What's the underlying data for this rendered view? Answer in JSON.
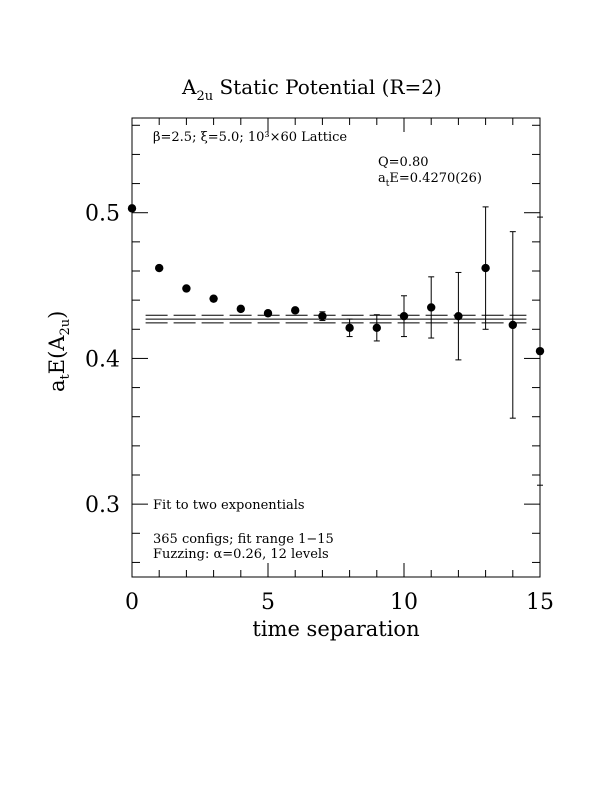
{
  "chart_data": {
    "type": "scatter",
    "title": "A₂ᵤ Static Potential (R=2)",
    "title_main": "A",
    "title_sub": "2u",
    "title_rest": " Static Potential (R=2)",
    "xlabel": "time separation",
    "ylabel_main": "a",
    "ylabel_sub1": "t",
    "ylabel_mid": "E(A",
    "ylabel_sub2": "2u",
    "ylabel_end": ")",
    "xlim": [
      0,
      15
    ],
    "ylim": [
      0.25,
      0.565
    ],
    "xticks": [
      0,
      5,
      10,
      15
    ],
    "xtick_labels": [
      "0",
      "5",
      "10",
      "15"
    ],
    "yticks": [
      0.3,
      0.4,
      0.5
    ],
    "ytick_labels": [
      "0.3",
      "0.4",
      "0.5"
    ],
    "grid": false,
    "annotations": {
      "lattice": "β=2.5; ξ=5.0; 10³×60 Lattice",
      "q": "Q=0.80",
      "energy_main": "a",
      "energy_sub": "t",
      "energy_rest": "E=0.4270(26)",
      "fit_note": "Fit to two exponentials",
      "configs": "365 configs; fit range 1−15",
      "fuzzing": "Fuzzing: α=0.26, 12 levels"
    },
    "fit": {
      "value": 0.427,
      "error": 0.0026,
      "x_range": [
        0.5,
        14.5
      ]
    },
    "series": [
      {
        "points": [
          {
            "x": 0,
            "y": 0.503,
            "err": 0.0
          },
          {
            "x": 1,
            "y": 0.462,
            "err": 0.0
          },
          {
            "x": 2,
            "y": 0.448,
            "err": 0.0
          },
          {
            "x": 3,
            "y": 0.441,
            "err": 0.0
          },
          {
            "x": 4,
            "y": 0.434,
            "err": 0.0
          },
          {
            "x": 5,
            "y": 0.431,
            "err": 0.0
          },
          {
            "x": 6,
            "y": 0.433,
            "err": 0.0
          },
          {
            "x": 7,
            "y": 0.429,
            "err": 0.003
          },
          {
            "x": 8,
            "y": 0.421,
            "err": 0.006
          },
          {
            "x": 9,
            "y": 0.421,
            "err": 0.009
          },
          {
            "x": 10,
            "y": 0.429,
            "err": 0.014
          },
          {
            "x": 11,
            "y": 0.435,
            "err": 0.021
          },
          {
            "x": 12,
            "y": 0.429,
            "err": 0.03
          },
          {
            "x": 13,
            "y": 0.462,
            "err": 0.042
          },
          {
            "x": 14,
            "y": 0.423,
            "err": 0.064
          },
          {
            "x": 15,
            "y": 0.405,
            "err": 0.092
          }
        ]
      }
    ]
  }
}
